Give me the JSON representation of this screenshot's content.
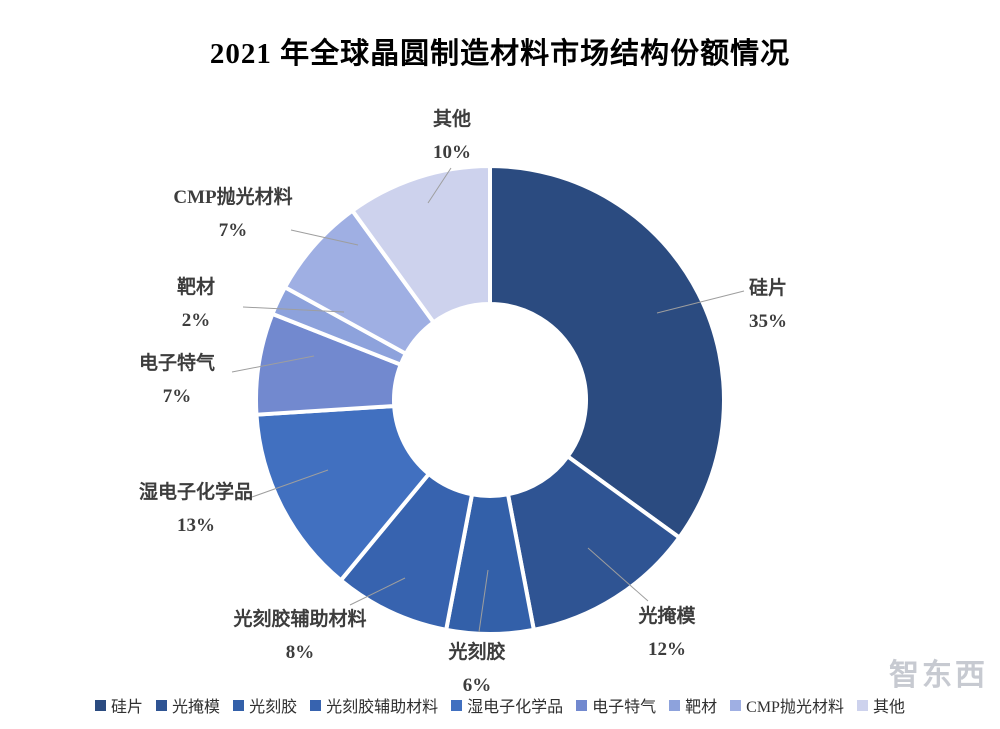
{
  "watermark": "智东西",
  "chart_data": {
    "type": "pie",
    "subtype": "donut",
    "title": "2021 年全球晶圆制造材料市场结构份额情况",
    "unit": "%",
    "start_angle_deg": 0,
    "direction": "clockwise",
    "donut_hole_ratio": 0.41,
    "legend_position": "bottom",
    "grid": false,
    "leader_line_color": "#9e9e9e",
    "separator_color": "#ffffff",
    "categories": [
      "硅片",
      "光掩模",
      "光刻胶",
      "光刻胶辅助材料",
      "湿电子化学品",
      "电子特气",
      "靶材",
      "CMP抛光材料",
      "其他"
    ],
    "values": [
      35,
      12,
      6,
      8,
      13,
      7,
      2,
      7,
      10
    ],
    "slices": [
      {
        "label": "硅片",
        "value": 35,
        "pct": "35%",
        "color": "#2B4B80"
      },
      {
        "label": "光掩模",
        "value": 12,
        "pct": "12%",
        "color": "#2F5493"
      },
      {
        "label": "光刻胶",
        "value": 6,
        "pct": "6%",
        "color": "#3360A9"
      },
      {
        "label": "光刻胶辅助材料",
        "value": 8,
        "pct": "8%",
        "color": "#3763AF"
      },
      {
        "label": "湿电子化学品",
        "value": 13,
        "pct": "13%",
        "color": "#4170C0"
      },
      {
        "label": "电子特气",
        "value": 7,
        "pct": "7%",
        "color": "#7289CF"
      },
      {
        "label": "靶材",
        "value": 2,
        "pct": "2%",
        "color": "#8DA2DC"
      },
      {
        "label": "CMP抛光材料",
        "value": 7,
        "pct": "7%",
        "color": "#9FAFE3"
      },
      {
        "label": "其他",
        "value": 10,
        "pct": "10%",
        "color": "#CDD2ED"
      }
    ],
    "legend": [
      "硅片",
      "光掩模",
      "光刻胶",
      "光刻胶辅助材料",
      "湿电子化学品",
      "电子特气",
      "靶材",
      "CMP抛光材料",
      "其他"
    ]
  }
}
